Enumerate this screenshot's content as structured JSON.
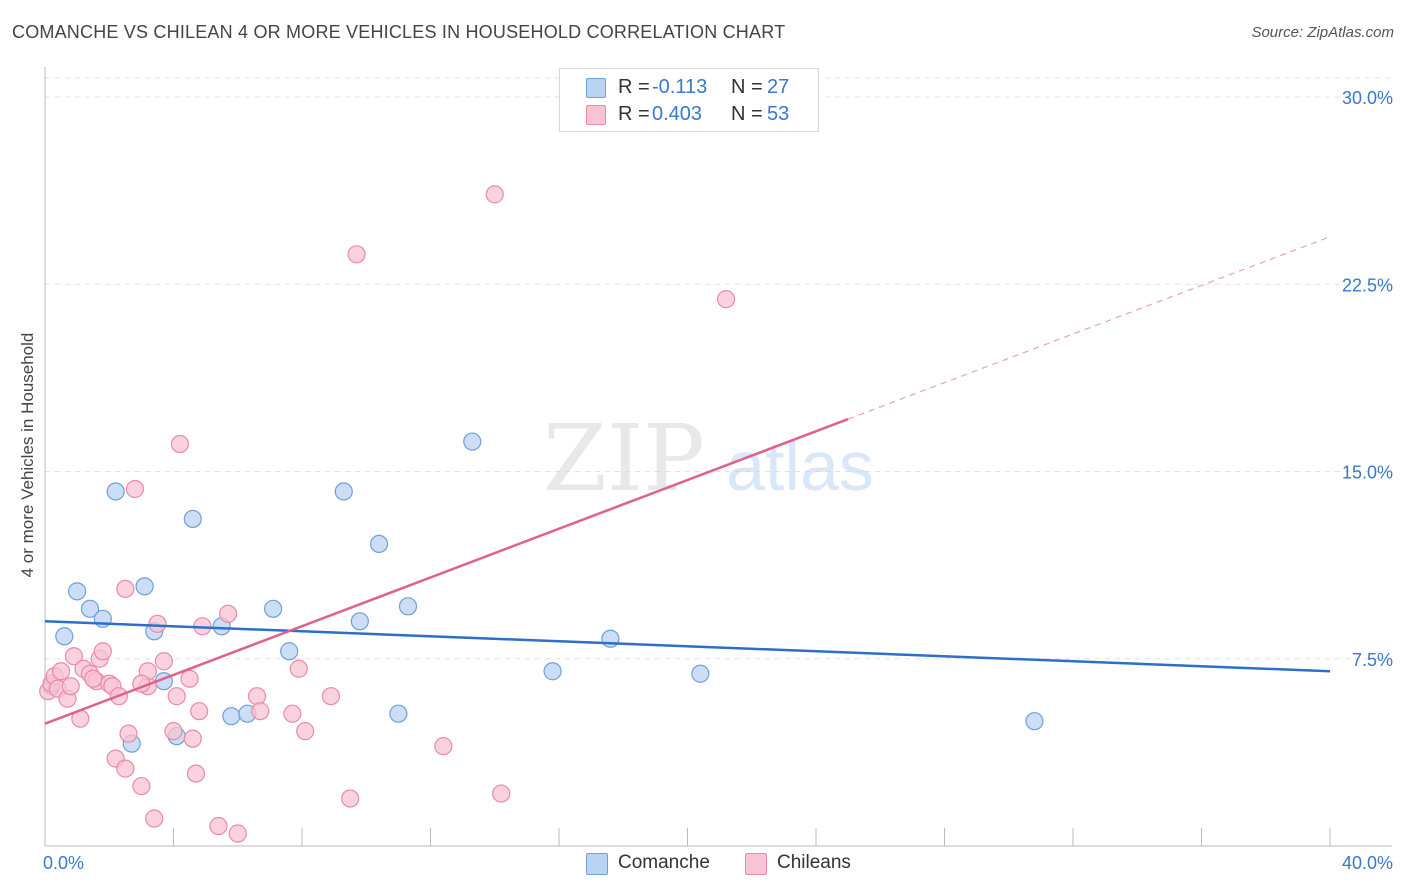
{
  "header": {
    "title": "COMANCHE VS CHILEAN 4 OR MORE VEHICLES IN HOUSEHOLD CORRELATION CHART",
    "source": "Source: ZipAtlas.com"
  },
  "legend": {
    "rows": [
      {
        "r_label": "R =",
        "r_value": "-0.113",
        "n_label": "N =",
        "n_value": "27"
      },
      {
        "r_label": "R =",
        "r_value": "0.403",
        "n_label": "N =",
        "n_value": "53"
      }
    ]
  },
  "bottom_legend": [
    "Comanche",
    "Chileans"
  ],
  "watermark": {
    "zip": "ZIP",
    "atlas": "atlas"
  },
  "colors": {
    "comanche_fill": "#b9d3f3",
    "comanche_stroke": "#6f9fd8",
    "comanche_line": "#2d6ec8",
    "chilean_fill": "#f8c3d2",
    "chilean_stroke": "#e98aa8",
    "chilean_line": "#e0608e",
    "tick_label": "#3a78c9",
    "grid": "#e2e2e2"
  },
  "chart_data": {
    "type": "scatter",
    "title": "COMANCHE VS CHILEAN 4 OR MORE VEHICLES IN HOUSEHOLD CORRELATION CHART",
    "xlabel": "",
    "ylabel": "4 or more Vehicles in Household",
    "xlim": [
      0,
      40
    ],
    "ylim": [
      0,
      30
    ],
    "x_tick_labels": [
      {
        "value": 0,
        "label": "0.0%"
      },
      {
        "value": 40,
        "label": "40.0%"
      }
    ],
    "y_tick_labels": [
      {
        "value": 7.5,
        "label": "7.5%"
      },
      {
        "value": 15.0,
        "label": "15.0%"
      },
      {
        "value": 22.5,
        "label": "22.5%"
      },
      {
        "value": 30.0,
        "label": "30.0%"
      }
    ],
    "series": [
      {
        "name": "Comanche",
        "points": [
          [
            0.2,
            6.4
          ],
          [
            0.6,
            8.4
          ],
          [
            1.0,
            10.2
          ],
          [
            1.4,
            9.5
          ],
          [
            1.8,
            9.1
          ],
          [
            2.2,
            14.2
          ],
          [
            2.7,
            4.1
          ],
          [
            3.1,
            10.4
          ],
          [
            3.4,
            8.6
          ],
          [
            3.7,
            6.6
          ],
          [
            4.1,
            4.4
          ],
          [
            4.6,
            13.1
          ],
          [
            5.5,
            8.8
          ],
          [
            5.8,
            5.2
          ],
          [
            6.3,
            5.3
          ],
          [
            7.1,
            9.5
          ],
          [
            7.6,
            7.8
          ],
          [
            9.3,
            14.2
          ],
          [
            9.8,
            9.0
          ],
          [
            10.4,
            12.1
          ],
          [
            11.0,
            5.3
          ],
          [
            11.3,
            9.6
          ],
          [
            13.3,
            16.2
          ],
          [
            15.8,
            7.0
          ],
          [
            17.6,
            8.3
          ],
          [
            20.4,
            6.9
          ],
          [
            30.8,
            5.0
          ]
        ]
      },
      {
        "name": "Chileans",
        "points": [
          [
            0.1,
            6.2
          ],
          [
            0.2,
            6.5
          ],
          [
            0.3,
            6.8
          ],
          [
            0.4,
            6.3
          ],
          [
            0.5,
            7.0
          ],
          [
            0.7,
            5.9
          ],
          [
            0.8,
            6.4
          ],
          [
            0.9,
            7.6
          ],
          [
            1.1,
            5.1
          ],
          [
            1.2,
            7.1
          ],
          [
            1.4,
            6.9
          ],
          [
            1.6,
            6.6
          ],
          [
            1.7,
            7.5
          ],
          [
            1.8,
            7.8
          ],
          [
            2.0,
            6.5
          ],
          [
            2.1,
            6.4
          ],
          [
            2.3,
            6.0
          ],
          [
            2.5,
            10.3
          ],
          [
            2.6,
            4.5
          ],
          [
            2.8,
            14.3
          ],
          [
            2.2,
            3.5
          ],
          [
            2.5,
            3.1
          ],
          [
            3.0,
            2.4
          ],
          [
            3.2,
            6.4
          ],
          [
            3.2,
            7.0
          ],
          [
            3.4,
            1.1
          ],
          [
            3.5,
            8.9
          ],
          [
            3.7,
            7.4
          ],
          [
            4.0,
            4.6
          ],
          [
            4.1,
            6.0
          ],
          [
            4.2,
            16.1
          ],
          [
            4.5,
            6.7
          ],
          [
            4.6,
            4.3
          ],
          [
            4.7,
            2.9
          ],
          [
            4.8,
            5.4
          ],
          [
            4.9,
            8.8
          ],
          [
            5.4,
            0.8
          ],
          [
            5.7,
            9.3
          ],
          [
            6.0,
            0.5
          ],
          [
            6.6,
            6.0
          ],
          [
            6.7,
            5.4
          ],
          [
            7.7,
            5.3
          ],
          [
            7.9,
            7.1
          ],
          [
            8.1,
            4.6
          ],
          [
            8.9,
            6.0
          ],
          [
            9.5,
            1.9
          ],
          [
            9.7,
            23.7
          ],
          [
            12.4,
            4.0
          ],
          [
            14.0,
            26.1
          ],
          [
            14.2,
            2.1
          ],
          [
            21.2,
            21.9
          ],
          [
            3.0,
            6.5
          ],
          [
            1.5,
            6.7
          ]
        ]
      }
    ],
    "trendlines": [
      {
        "series": "Comanche",
        "x": [
          0,
          40
        ],
        "y": [
          9.0,
          7.0
        ],
        "style": "solid"
      },
      {
        "series": "Chileans",
        "x": [
          0,
          25
        ],
        "y": [
          4.9,
          17.1
        ],
        "style": "solid"
      },
      {
        "series": "Chileans",
        "x": [
          25,
          40
        ],
        "y": [
          17.1,
          24.4
        ],
        "style": "dashed"
      }
    ],
    "grid": true,
    "legend_position": "top-center"
  }
}
